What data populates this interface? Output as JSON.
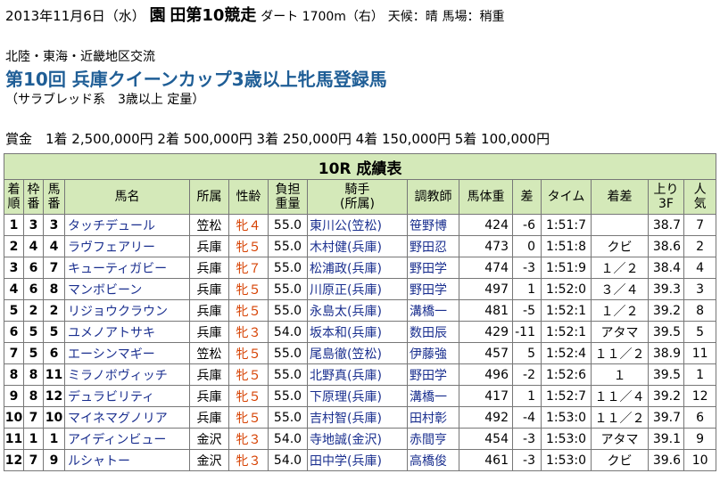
{
  "header": {
    "date": "2013年11月6日（水）",
    "venue": "園",
    "venue_suffix": "田",
    "race_title": "第10競走",
    "course": "ダート 1700m（右）",
    "weather": "天候：晴",
    "track": "馬場：稍重",
    "category": "北陸・東海・近畿地区交流",
    "race_name": "第10回 兵庫クイーンカップ3歳以上牝馬登録馬",
    "conditions": "（サラブレッド系　3歳以上 定量）",
    "prizes": "賞金　1着 2,500,000円 2着 500,000円 3着 250,000円 4着 150,000円 5着 100,000円"
  },
  "table": {
    "title": "10R 成績表",
    "columns": [
      [
        "着",
        "順"
      ],
      [
        "枠",
        "番"
      ],
      [
        "馬",
        "番"
      ],
      [
        "馬名"
      ],
      [
        "所属"
      ],
      [
        "性齢"
      ],
      [
        "負担",
        "重量"
      ],
      [
        "騎手",
        "(所属)"
      ],
      [
        "調教師"
      ],
      [
        "馬体重"
      ],
      [
        "差"
      ],
      [
        "タイム"
      ],
      [
        "着差"
      ],
      [
        "上り",
        "3F"
      ],
      [
        "人",
        "気"
      ]
    ],
    "rows": [
      {
        "rank": "1",
        "waku": "3",
        "uma": "3",
        "horse": "タッチデュール",
        "club": "笠松",
        "sex": "牝４",
        "wt": "55.0",
        "jockey": "東川公(笠松)",
        "trainer": "笹野博",
        "bw": "424",
        "diff": "-6",
        "time": "1:51:7",
        "margin": "",
        "last3f": "38.7",
        "pop": "7"
      },
      {
        "rank": "2",
        "waku": "4",
        "uma": "4",
        "horse": "ラヴフェアリー",
        "club": "兵庫",
        "sex": "牝５",
        "wt": "55.0",
        "jockey": "木村健(兵庫)",
        "trainer": "野田忍",
        "bw": "473",
        "diff": "0",
        "time": "1:51:8",
        "margin": "クビ",
        "last3f": "38.6",
        "pop": "2"
      },
      {
        "rank": "3",
        "waku": "6",
        "uma": "7",
        "horse": "キューティガビー",
        "club": "兵庫",
        "sex": "牝７",
        "wt": "55.0",
        "jockey": "松浦政(兵庫)",
        "trainer": "野田学",
        "bw": "474",
        "diff": "-3",
        "time": "1:51:9",
        "margin": "１／２",
        "last3f": "38.4",
        "pop": "4"
      },
      {
        "rank": "4",
        "waku": "6",
        "uma": "8",
        "horse": "マンボビーン",
        "club": "兵庫",
        "sex": "牝５",
        "wt": "55.0",
        "jockey": "川原正(兵庫)",
        "trainer": "野田学",
        "bw": "497",
        "diff": "1",
        "time": "1:52:0",
        "margin": "３／４",
        "last3f": "39.3",
        "pop": "3"
      },
      {
        "rank": "5",
        "waku": "2",
        "uma": "2",
        "horse": "リジョウクラウン",
        "club": "兵庫",
        "sex": "牝５",
        "wt": "55.0",
        "jockey": "永島太(兵庫)",
        "trainer": "溝橋一",
        "bw": "481",
        "diff": "-5",
        "time": "1:52:1",
        "margin": "１／２",
        "last3f": "39.2",
        "pop": "8"
      },
      {
        "rank": "6",
        "waku": "5",
        "uma": "5",
        "horse": "ユメノアトサキ",
        "club": "兵庫",
        "sex": "牝３",
        "wt": "54.0",
        "jockey": "坂本和(兵庫)",
        "trainer": "数田辰",
        "bw": "429",
        "diff": "-11",
        "time": "1:52:1",
        "margin": "アタマ",
        "last3f": "39.5",
        "pop": "5"
      },
      {
        "rank": "7",
        "waku": "5",
        "uma": "6",
        "horse": "エーシンマギー",
        "club": "笠松",
        "sex": "牝５",
        "wt": "55.0",
        "jockey": "尾島徹(笠松)",
        "trainer": "伊藤強",
        "bw": "457",
        "diff": "5",
        "time": "1:52:4",
        "margin": "１１／２",
        "last3f": "38.9",
        "pop": "11"
      },
      {
        "rank": "8",
        "waku": "8",
        "uma": "11",
        "horse": "ミラノボヴィッチ",
        "club": "兵庫",
        "sex": "牝５",
        "wt": "55.0",
        "jockey": "北野真(兵庫)",
        "trainer": "野田学",
        "bw": "496",
        "diff": "-2",
        "time": "1:52:6",
        "margin": "１",
        "last3f": "39.5",
        "pop": "1"
      },
      {
        "rank": "9",
        "waku": "8",
        "uma": "12",
        "horse": "デュラビリティ",
        "club": "兵庫",
        "sex": "牝５",
        "wt": "55.0",
        "jockey": "下原理(兵庫)",
        "trainer": "溝橋一",
        "bw": "417",
        "diff": "1",
        "time": "1:52:7",
        "margin": "１１／４",
        "last3f": "39.2",
        "pop": "12"
      },
      {
        "rank": "10",
        "waku": "7",
        "uma": "10",
        "horse": "マイネマグノリア",
        "club": "兵庫",
        "sex": "牝５",
        "wt": "55.0",
        "jockey": "吉村智(兵庫)",
        "trainer": "田村彰",
        "bw": "492",
        "diff": "-4",
        "time": "1:53:0",
        "margin": "１１／２",
        "last3f": "39.7",
        "pop": "6"
      },
      {
        "rank": "11",
        "waku": "1",
        "uma": "1",
        "horse": "アイディンビュー",
        "club": "金沢",
        "sex": "牝３",
        "wt": "54.0",
        "jockey": "寺地誠(金沢)",
        "trainer": "赤間亨",
        "bw": "454",
        "diff": "-3",
        "time": "1:53:0",
        "margin": "アタマ",
        "last3f": "39.1",
        "pop": "9"
      },
      {
        "rank": "12",
        "waku": "7",
        "uma": "9",
        "horse": "ルシャトー",
        "club": "金沢",
        "sex": "牝３",
        "wt": "54.0",
        "jockey": "田中学(兵庫)",
        "trainer": "高橋俊",
        "bw": "461",
        "diff": "-3",
        "time": "1:53:0",
        "margin": "クビ",
        "last3f": "39.6",
        "pop": "10"
      }
    ]
  }
}
